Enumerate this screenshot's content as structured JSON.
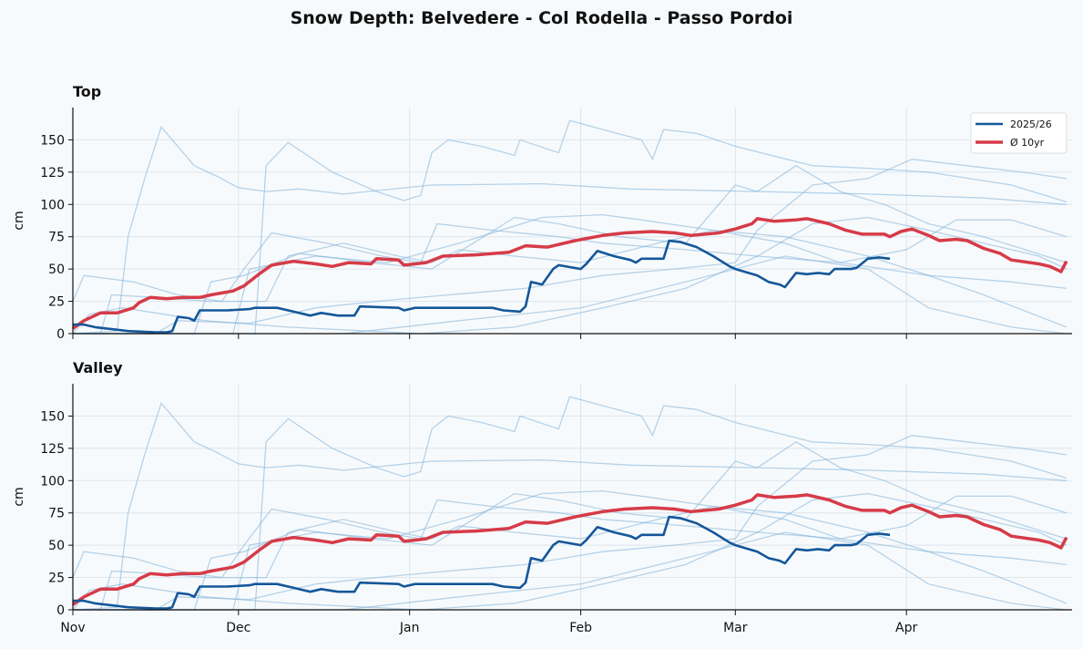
{
  "title": "Snow Depth: Belvedere - Col Rodella - Passo Pordoi",
  "colors": {
    "current": "#14579a",
    "average": "#d63b48",
    "history": "#7fb0d8",
    "background": "#f7fafc"
  },
  "chart_data": [
    {
      "type": "line",
      "title": "Top",
      "ylabel": "cm",
      "xlabel": "",
      "ylim": [
        0,
        175
      ],
      "yticks": [
        "0",
        "25",
        "50",
        "75",
        "100",
        "125",
        "150"
      ],
      "xticks": [
        "Nov",
        "Dec",
        "Jan",
        "Feb",
        "Mar",
        "Apr"
      ],
      "show_xtick_labels": false,
      "grid": true,
      "legend": {
        "position": "top-right",
        "entries": [
          "2025/26",
          "Ø 10yr"
        ]
      },
      "series_ref": "series"
    },
    {
      "type": "line",
      "title": "Valley",
      "ylabel": "cm",
      "xlabel": "",
      "ylim": [
        0,
        175
      ],
      "yticks": [
        "0",
        "25",
        "50",
        "75",
        "100",
        "125",
        "150"
      ],
      "xticks": [
        "Nov",
        "Dec",
        "Jan",
        "Feb",
        "Mar",
        "Apr"
      ],
      "show_xtick_labels": true,
      "grid": true,
      "series_ref": "series"
    }
  ],
  "series": {
    "current": {
      "name": "2025/26",
      "points": [
        [
          "11-01",
          7
        ],
        [
          "11-03",
          7
        ],
        [
          "11-05",
          5
        ],
        [
          "11-11",
          2
        ],
        [
          "11-16",
          1
        ],
        [
          "11-18",
          1
        ],
        [
          "11-19",
          2
        ],
        [
          "11-20",
          13
        ],
        [
          "11-22",
          12
        ],
        [
          "11-23",
          10
        ],
        [
          "11-24",
          18
        ],
        [
          "11-29",
          18
        ],
        [
          "12-03",
          19
        ],
        [
          "12-04",
          20
        ],
        [
          "12-08",
          20
        ],
        [
          "12-11",
          17
        ],
        [
          "12-14",
          14
        ],
        [
          "12-16",
          16
        ],
        [
          "12-19",
          14
        ],
        [
          "12-22",
          14
        ],
        [
          "12-23",
          21
        ],
        [
          "12-30",
          20
        ],
        [
          "12-31",
          18
        ],
        [
          "01-02",
          20
        ],
        [
          "01-16",
          20
        ],
        [
          "01-18",
          18
        ],
        [
          "01-21",
          17
        ],
        [
          "01-22",
          21
        ],
        [
          "01-23",
          40
        ],
        [
          "01-25",
          38
        ],
        [
          "01-27",
          50
        ],
        [
          "01-28",
          53
        ],
        [
          "02-01",
          50
        ],
        [
          "02-02",
          54
        ],
        [
          "02-04",
          64
        ],
        [
          "02-07",
          60
        ],
        [
          "02-10",
          57
        ],
        [
          "02-11",
          55
        ],
        [
          "02-12",
          58
        ],
        [
          "02-16",
          58
        ],
        [
          "02-17",
          72
        ],
        [
          "02-19",
          71
        ],
        [
          "02-22",
          67
        ],
        [
          "02-25",
          60
        ],
        [
          "02-28",
          52
        ],
        [
          "03-01",
          50
        ],
        [
          "03-05",
          45
        ],
        [
          "03-07",
          40
        ],
        [
          "03-09",
          38
        ],
        [
          "03-10",
          36
        ],
        [
          "03-12",
          47
        ],
        [
          "03-14",
          46
        ],
        [
          "03-16",
          47
        ],
        [
          "03-18",
          46
        ],
        [
          "03-19",
          50
        ],
        [
          "03-22",
          50
        ],
        [
          "03-23",
          51
        ],
        [
          "03-25",
          58
        ],
        [
          "03-27",
          59
        ],
        [
          "03-29",
          58
        ]
      ]
    },
    "average": {
      "name": "Ø 10yr",
      "points": [
        [
          "11-01",
          4
        ],
        [
          "11-03",
          10
        ],
        [
          "11-06",
          16
        ],
        [
          "11-09",
          16
        ],
        [
          "11-12",
          20
        ],
        [
          "11-13",
          24
        ],
        [
          "11-15",
          28
        ],
        [
          "11-18",
          27
        ],
        [
          "11-21",
          28
        ],
        [
          "11-24",
          28
        ],
        [
          "11-26",
          30
        ],
        [
          "11-30",
          33
        ],
        [
          "12-02",
          37
        ],
        [
          "12-05",
          47
        ],
        [
          "12-07",
          53
        ],
        [
          "12-11",
          56
        ],
        [
          "12-15",
          54
        ],
        [
          "12-18",
          52
        ],
        [
          "12-21",
          55
        ],
        [
          "12-25",
          54
        ],
        [
          "12-26",
          58
        ],
        [
          "12-30",
          57
        ],
        [
          "12-31",
          53
        ],
        [
          "01-04",
          55
        ],
        [
          "01-07",
          60
        ],
        [
          "01-13",
          61
        ],
        [
          "01-19",
          63
        ],
        [
          "01-22",
          68
        ],
        [
          "01-26",
          67
        ],
        [
          "01-31",
          72
        ],
        [
          "02-05",
          76
        ],
        [
          "02-09",
          78
        ],
        [
          "02-14",
          79
        ],
        [
          "02-18",
          78
        ],
        [
          "02-21",
          76
        ],
        [
          "02-26",
          78
        ],
        [
          "03-01",
          81
        ],
        [
          "03-04",
          85
        ],
        [
          "03-05",
          89
        ],
        [
          "03-08",
          87
        ],
        [
          "03-12",
          88
        ],
        [
          "03-14",
          89
        ],
        [
          "03-18",
          85
        ],
        [
          "03-21",
          80
        ],
        [
          "03-24",
          77
        ],
        [
          "03-28",
          77
        ],
        [
          "03-29",
          75
        ],
        [
          "03-31",
          79
        ],
        [
          "04-02",
          81
        ],
        [
          "04-05",
          76
        ],
        [
          "04-07",
          72
        ],
        [
          "04-10",
          73
        ],
        [
          "04-12",
          72
        ],
        [
          "04-15",
          66
        ],
        [
          "04-18",
          62
        ],
        [
          "04-20",
          57
        ],
        [
          "04-25",
          54
        ],
        [
          "04-27",
          52
        ],
        [
          "04-29",
          48
        ],
        [
          "04-30",
          56
        ]
      ]
    },
    "history": [
      [
        [
          "11-01",
          0
        ],
        [
          "11-09",
          2
        ],
        [
          "11-11",
          75
        ],
        [
          "11-14",
          120
        ],
        [
          "11-17",
          160
        ],
        [
          "11-19",
          150
        ],
        [
          "11-23",
          130
        ],
        [
          "11-27",
          122
        ],
        [
          "12-01",
          113
        ],
        [
          "12-06",
          110
        ],
        [
          "12-12",
          112
        ],
        [
          "12-20",
          108
        ],
        [
          "01-05",
          115
        ],
        [
          "01-25",
          116
        ],
        [
          "02-10",
          112
        ],
        [
          "03-05",
          110
        ],
        [
          "03-25",
          108
        ],
        [
          "04-15",
          105
        ],
        [
          "04-30",
          100
        ]
      ],
      [
        [
          "11-01",
          0
        ],
        [
          "12-04",
          0
        ],
        [
          "12-06",
          130
        ],
        [
          "12-10",
          148
        ],
        [
          "12-18",
          125
        ],
        [
          "12-26",
          110
        ],
        [
          "12-31",
          103
        ],
        [
          "01-03",
          107
        ],
        [
          "01-05",
          140
        ],
        [
          "01-08",
          150
        ],
        [
          "01-14",
          145
        ],
        [
          "01-20",
          138
        ],
        [
          "01-21",
          150
        ],
        [
          "01-28",
          140
        ],
        [
          "01-30",
          165
        ],
        [
          "02-05",
          158
        ],
        [
          "02-12",
          150
        ],
        [
          "02-14",
          135
        ],
        [
          "02-16",
          158
        ],
        [
          "02-22",
          155
        ],
        [
          "03-01",
          145
        ],
        [
          "03-15",
          130
        ],
        [
          "03-25",
          128
        ],
        [
          "04-05",
          125
        ],
        [
          "04-20",
          115
        ],
        [
          "04-30",
          102
        ]
      ],
      [
        [
          "11-01",
          25
        ],
        [
          "11-03",
          45
        ],
        [
          "11-12",
          40
        ],
        [
          "11-20",
          30
        ],
        [
          "11-28",
          25
        ],
        [
          "12-02",
          50
        ],
        [
          "12-07",
          78
        ],
        [
          "12-17",
          70
        ],
        [
          "12-27",
          60
        ],
        [
          "01-03",
          55
        ],
        [
          "01-06",
          85
        ],
        [
          "01-16",
          80
        ],
        [
          "01-28",
          75
        ],
        [
          "02-05",
          70
        ],
        [
          "02-20",
          65
        ],
        [
          "03-05",
          60
        ],
        [
          "03-20",
          55
        ],
        [
          "04-05",
          45
        ],
        [
          "04-20",
          40
        ],
        [
          "04-30",
          35
        ]
      ],
      [
        [
          "11-01",
          0
        ],
        [
          "11-06",
          0
        ],
        [
          "11-08",
          30
        ],
        [
          "11-16",
          28
        ],
        [
          "11-26",
          25
        ],
        [
          "12-06",
          25
        ],
        [
          "12-10",
          60
        ],
        [
          "12-20",
          70
        ],
        [
          "12-30",
          60
        ],
        [
          "01-05",
          55
        ],
        [
          "01-10",
          65
        ],
        [
          "01-20",
          60
        ],
        [
          "02-01",
          55
        ],
        [
          "02-15",
          70
        ],
        [
          "02-25",
          80
        ],
        [
          "03-10",
          75
        ],
        [
          "03-25",
          60
        ],
        [
          "04-05",
          45
        ],
        [
          "04-15",
          30
        ],
        [
          "04-30",
          5
        ]
      ],
      [
        [
          "11-01",
          0
        ],
        [
          "11-23",
          0
        ],
        [
          "11-26",
          40
        ],
        [
          "12-02",
          45
        ],
        [
          "12-12",
          62
        ],
        [
          "12-25",
          55
        ],
        [
          "01-05",
          50
        ],
        [
          "01-20",
          90
        ],
        [
          "01-28",
          85
        ],
        [
          "02-08",
          75
        ],
        [
          "02-20",
          70
        ],
        [
          "03-01",
          115
        ],
        [
          "03-05",
          110
        ],
        [
          "03-12",
          130
        ],
        [
          "03-20",
          110
        ],
        [
          "03-28",
          100
        ],
        [
          "04-05",
          85
        ],
        [
          "04-15",
          75
        ],
        [
          "04-30",
          55
        ]
      ],
      [
        [
          "11-01",
          0
        ],
        [
          "11-16",
          0
        ],
        [
          "11-20",
          10
        ],
        [
          "12-03",
          8
        ],
        [
          "12-15",
          20
        ],
        [
          "12-26",
          25
        ],
        [
          "01-08",
          30
        ],
        [
          "01-22",
          35
        ],
        [
          "02-05",
          45
        ],
        [
          "02-18",
          50
        ],
        [
          "03-01",
          55
        ],
        [
          "03-05",
          80
        ],
        [
          "03-15",
          115
        ],
        [
          "03-25",
          120
        ],
        [
          "04-02",
          135
        ],
        [
          "04-12",
          130
        ],
        [
          "04-22",
          125
        ],
        [
          "04-30",
          120
        ]
      ],
      [
        [
          "11-01",
          0
        ],
        [
          "11-04",
          15
        ],
        [
          "11-10",
          20
        ],
        [
          "11-25",
          10
        ],
        [
          "12-10",
          5
        ],
        [
          "01-03",
          0
        ],
        [
          "01-20",
          5
        ],
        [
          "02-05",
          20
        ],
        [
          "02-20",
          35
        ],
        [
          "03-05",
          60
        ],
        [
          "03-15",
          85
        ],
        [
          "03-25",
          90
        ],
        [
          "04-05",
          80
        ],
        [
          "04-15",
          70
        ],
        [
          "04-25",
          60
        ],
        [
          "04-30",
          50
        ]
      ],
      [
        [
          "11-01",
          0
        ],
        [
          "11-30",
          0
        ],
        [
          "12-03",
          50
        ],
        [
          "12-15",
          60
        ],
        [
          "12-28",
          55
        ],
        [
          "01-10",
          70
        ],
        [
          "01-25",
          90
        ],
        [
          "02-05",
          92
        ],
        [
          "02-12",
          88
        ],
        [
          "02-25",
          80
        ],
        [
          "03-10",
          70
        ],
        [
          "03-20",
          55
        ],
        [
          "04-01",
          65
        ],
        [
          "04-10",
          88
        ],
        [
          "04-20",
          88
        ],
        [
          "04-30",
          75
        ]
      ],
      [
        [
          "11-01",
          0
        ],
        [
          "12-20",
          0
        ],
        [
          "01-10",
          10
        ],
        [
          "02-01",
          20
        ],
        [
          "02-20",
          40
        ],
        [
          "03-10",
          60
        ],
        [
          "03-25",
          50
        ],
        [
          "04-05",
          20
        ],
        [
          "04-20",
          5
        ],
        [
          "04-30",
          0
        ]
      ]
    ]
  }
}
